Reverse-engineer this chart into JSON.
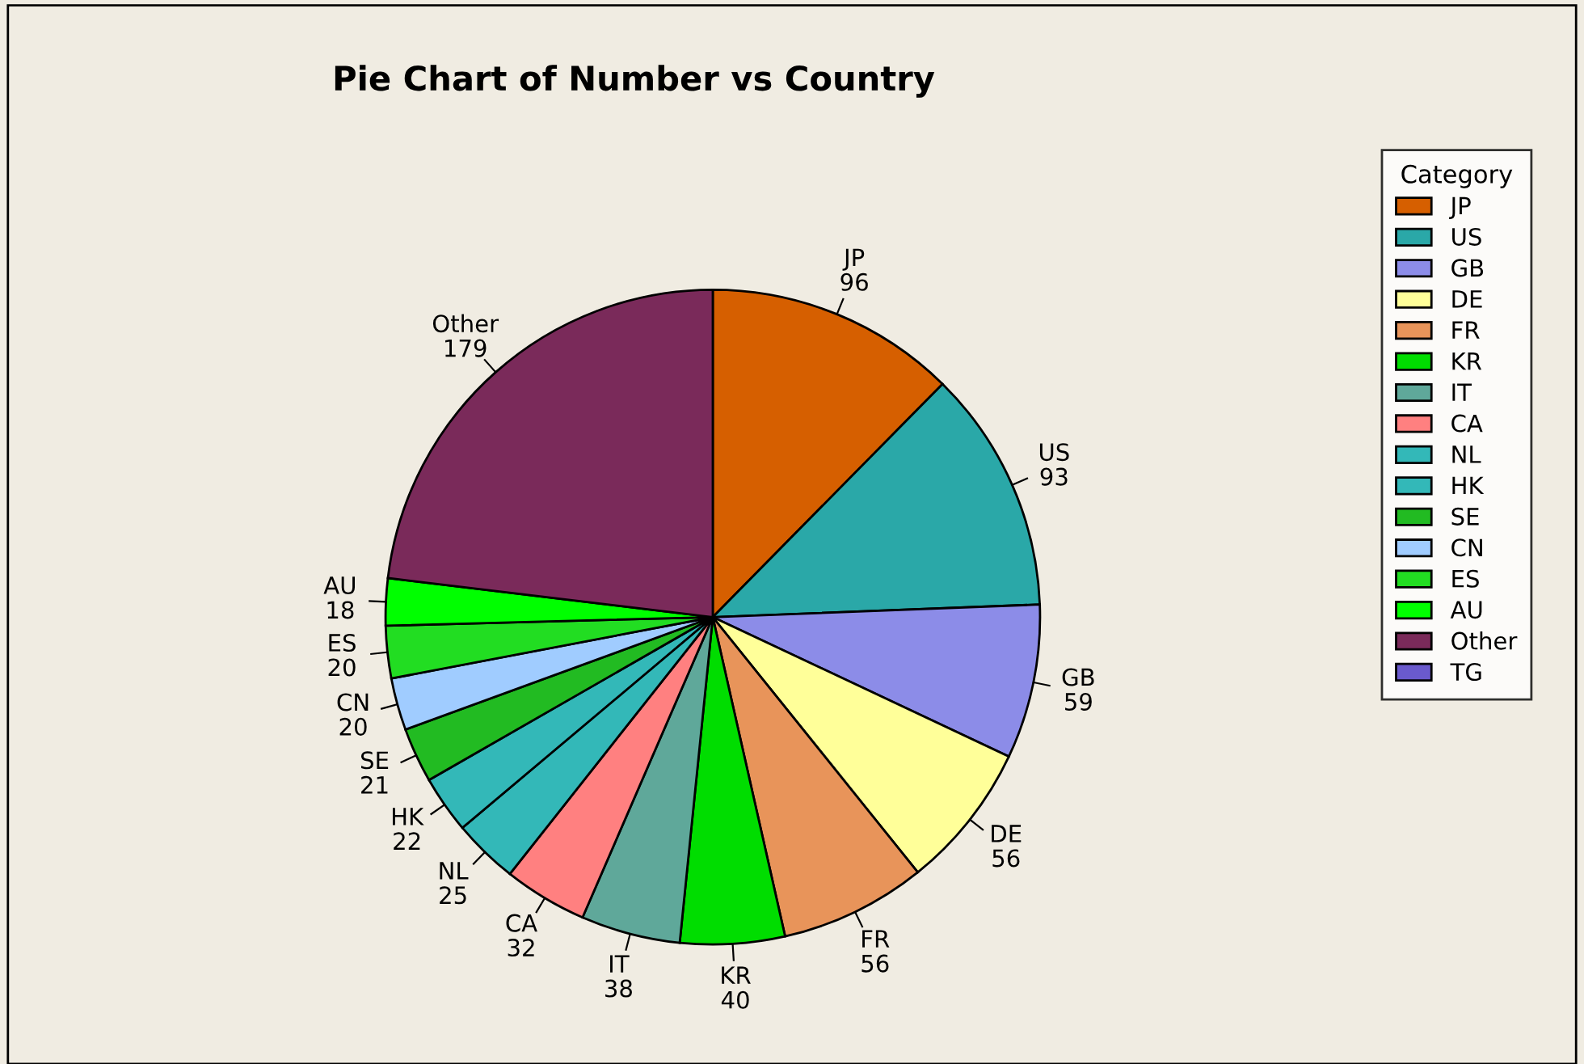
{
  "chart_data": {
    "type": "pie",
    "title": "Pie Chart of Number vs Country",
    "legend_title": "Category",
    "legend": "right",
    "categories": [
      "JP",
      "US",
      "GB",
      "DE",
      "FR",
      "KR",
      "IT",
      "CA",
      "NL",
      "HK",
      "SE",
      "CN",
      "ES",
      "AU",
      "Other",
      "TG"
    ],
    "values": [
      96,
      93,
      59,
      56,
      56,
      40,
      38,
      32,
      25,
      22,
      21,
      20,
      20,
      18,
      179,
      null
    ],
    "colors": [
      "#d65f00",
      "#2aa8a8",
      "#8c8ce8",
      "#ffff99",
      "#e8945a",
      "#00dd00",
      "#5fa89a",
      "#ff8080",
      "#33b8b8",
      "#33b8b8",
      "#22bb22",
      "#a0ccff",
      "#22dd22",
      "#00ff00",
      "#7a2a5a",
      "#6a5acd"
    ],
    "data_labels": true
  }
}
